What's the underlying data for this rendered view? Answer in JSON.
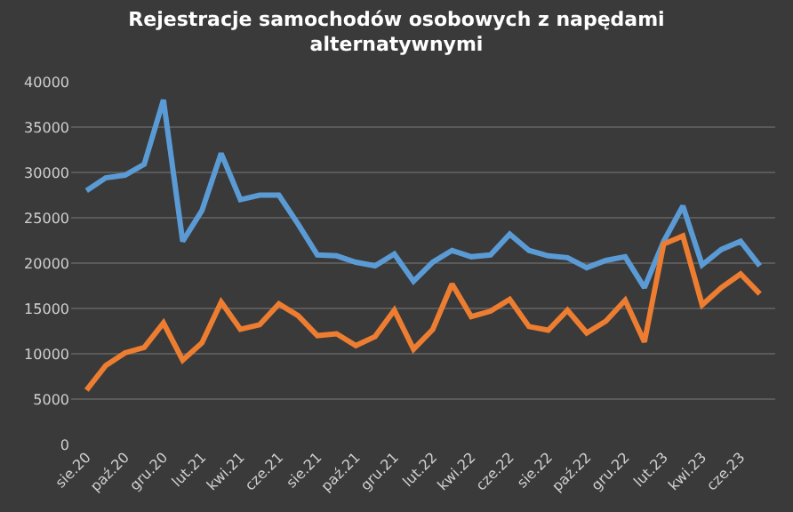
{
  "chart_data": {
    "type": "line",
    "title": "Rejestracje samochodów osobowych z napędami\nalternatywnymi",
    "categories": [
      "sie.20",
      null,
      "paź.20",
      null,
      "gru.20",
      null,
      "lut.21",
      null,
      "kwi.21",
      null,
      "cze.21",
      null,
      "sie.21",
      null,
      "paź.21",
      null,
      "gru.21",
      null,
      "lut.22",
      null,
      "kwi.22",
      null,
      "cze.22",
      null,
      "sie.22",
      null,
      "paź.22",
      null,
      "gru.22",
      null,
      "lut.23",
      null,
      "kwi.23",
      null,
      "cze.23",
      null
    ],
    "series": [
      {
        "color": "#5b9bd5",
        "values": [
          28000,
          29400,
          29700,
          30900,
          38000,
          22400,
          25800,
          32100,
          27000,
          27500,
          27500,
          24300,
          20900,
          20800,
          20100,
          19700,
          21000,
          18000,
          20100,
          21400,
          20700,
          20900,
          23200,
          21400,
          20800,
          20600,
          19500,
          20300,
          20700,
          17300,
          22400,
          26300,
          19800,
          21500,
          22400,
          19700
        ]
      },
      {
        "color": "#ed7d31",
        "values": [
          6000,
          8700,
          10100,
          10700,
          13400,
          9300,
          11200,
          15700,
          12700,
          13200,
          15500,
          14200,
          12000,
          12200,
          10900,
          11900,
          14800,
          10500,
          12700,
          17700,
          14100,
          14700,
          16000,
          13000,
          12600,
          14800,
          12300,
          13600,
          15900,
          11300,
          22100,
          23000,
          15400,
          17300,
          18800,
          16600
        ]
      }
    ],
    "ylim": [
      0,
      40000
    ],
    "yticks": [
      0,
      5000,
      10000,
      15000,
      20000,
      25000,
      30000,
      35000,
      40000
    ],
    "grid": "y",
    "marker": "none",
    "line_style": "solid"
  }
}
